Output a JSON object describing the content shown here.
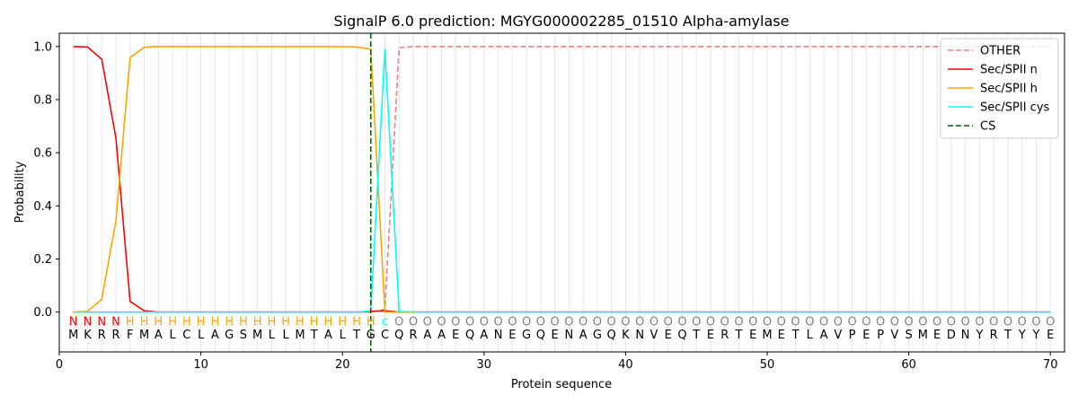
{
  "chart_data": {
    "type": "line",
    "title": "SignalP 6.0 prediction: MGYG000002285_01510 Alpha-amylase",
    "xlabel": "Protein sequence",
    "ylabel": "Probability",
    "xlim": [
      0,
      71
    ],
    "ylim": [
      -0.15,
      1.05
    ],
    "xticks": [
      0,
      10,
      20,
      30,
      40,
      50,
      60,
      70
    ],
    "yticks": [
      0.0,
      0.2,
      0.4,
      0.6,
      0.8,
      1.0
    ],
    "ytick_labels": [
      "0.0",
      "0.2",
      "0.4",
      "0.6",
      "0.8",
      "1.0"
    ],
    "legend_position": "top-right",
    "sequence": [
      "M",
      "K",
      "R",
      "R",
      "F",
      "M",
      "A",
      "L",
      "C",
      "L",
      "A",
      "G",
      "S",
      "M",
      "L",
      "L",
      "M",
      "T",
      "A",
      "L",
      "T",
      "G",
      "C",
      "Q",
      "R",
      "A",
      "A",
      "E",
      "Q",
      "A",
      "N",
      "E",
      "G",
      "Q",
      "E",
      "N",
      "A",
      "G",
      "Q",
      "K",
      "N",
      "V",
      "E",
      "Q",
      "T",
      "E",
      "R",
      "T",
      "E",
      "M",
      "E",
      "T",
      "L",
      "A",
      "V",
      "P",
      "E",
      "P",
      "V",
      "S",
      "M",
      "E",
      "D",
      "N",
      "Y",
      "R",
      "T",
      "Y",
      "Y",
      "E"
    ],
    "annotation": [
      "N",
      "N",
      "N",
      "N",
      "H",
      "H",
      "H",
      "H",
      "H",
      "H",
      "H",
      "H",
      "H",
      "H",
      "H",
      "H",
      "H",
      "H",
      "H",
      "H",
      "H",
      "H",
      "c",
      "O",
      "O",
      "O",
      "O",
      "O",
      "O",
      "O",
      "O",
      "O",
      "O",
      "O",
      "O",
      "O",
      "O",
      "O",
      "O",
      "O",
      "O",
      "O",
      "O",
      "O",
      "O",
      "O",
      "O",
      "O",
      "O",
      "O",
      "O",
      "O",
      "O",
      "O",
      "O",
      "O",
      "O",
      "O",
      "O",
      "O",
      "O",
      "O",
      "O",
      "O",
      "O",
      "O",
      "O",
      "O",
      "O",
      "O"
    ],
    "annotation_colors": {
      "N": "#ff0000",
      "H": "#ffa500",
      "c": "#00ffff",
      "O": "#808080"
    },
    "series": [
      {
        "name": "OTHER",
        "color": "#f08080",
        "dash": "dashed",
        "values": [
          0,
          0,
          0,
          0,
          0,
          0,
          0,
          0,
          0,
          0,
          0,
          0,
          0,
          0,
          0,
          0,
          0,
          0,
          0,
          0,
          0,
          0,
          0.01,
          0.995,
          1,
          1,
          1,
          1,
          1,
          1,
          1,
          1,
          1,
          1,
          1,
          1,
          1,
          1,
          1,
          1,
          1,
          1,
          1,
          1,
          1,
          1,
          1,
          1,
          1,
          1,
          1,
          1,
          1,
          1,
          1,
          1,
          1,
          1,
          1,
          1,
          1,
          1,
          1,
          1,
          1,
          1,
          1,
          1,
          1,
          1
        ]
      },
      {
        "name": "Sec/SPII n",
        "color": "#ff0000",
        "dash": "solid",
        "values": [
          1.0,
          0.998,
          0.952,
          0.655,
          0.04,
          0.005,
          0,
          0,
          0,
          0,
          0,
          0,
          0,
          0,
          0,
          0,
          0,
          0,
          0,
          0,
          0,
          0.003,
          0.005,
          0,
          0,
          0,
          0,
          0,
          0,
          0,
          0,
          0,
          0,
          0,
          0,
          0,
          0,
          0,
          0,
          0,
          0,
          0,
          0,
          0,
          0,
          0,
          0,
          0,
          0,
          0,
          0,
          0,
          0,
          0,
          0,
          0,
          0,
          0,
          0,
          0,
          0,
          0,
          0,
          0,
          0,
          0,
          0,
          0,
          0,
          0
        ]
      },
      {
        "name": "Sec/SPII h",
        "color": "#ffa500",
        "dash": "solid",
        "values": [
          0,
          0.003,
          0.048,
          0.345,
          0.958,
          0.997,
          1.0,
          1.0,
          1.0,
          1.0,
          1.0,
          1.0,
          1.0,
          1.0,
          1.0,
          1.0,
          1.0,
          1.0,
          1.0,
          0.999,
          0.998,
          0.99,
          0.0,
          0.0,
          0,
          0,
          0,
          0,
          0,
          0,
          0,
          0,
          0,
          0,
          0,
          0,
          0,
          0,
          0,
          0,
          0,
          0,
          0,
          0,
          0,
          0,
          0,
          0,
          0,
          0,
          0,
          0,
          0,
          0,
          0,
          0,
          0,
          0,
          0,
          0,
          0,
          0,
          0,
          0,
          0,
          0,
          0,
          0,
          0,
          0
        ]
      },
      {
        "name": "Sec/SPII cys",
        "color": "#00ffff",
        "dash": "solid",
        "values": [
          0,
          0,
          0,
          0,
          0,
          0,
          0,
          0,
          0,
          0,
          0,
          0,
          0,
          0,
          0,
          0,
          0,
          0,
          0,
          0,
          0,
          0.005,
          0.99,
          0.002,
          0,
          0,
          0,
          0,
          0,
          0,
          0,
          0,
          0,
          0,
          0,
          0,
          0,
          0,
          0,
          0,
          0,
          0,
          0,
          0,
          0,
          0,
          0,
          0,
          0,
          0,
          0,
          0,
          0,
          0,
          0,
          0,
          0,
          0,
          0,
          0,
          0,
          0,
          0,
          0,
          0,
          0,
          0,
          0,
          0,
          0
        ]
      }
    ],
    "cs": {
      "name": "CS",
      "color": "#006400",
      "x": 22
    }
  }
}
